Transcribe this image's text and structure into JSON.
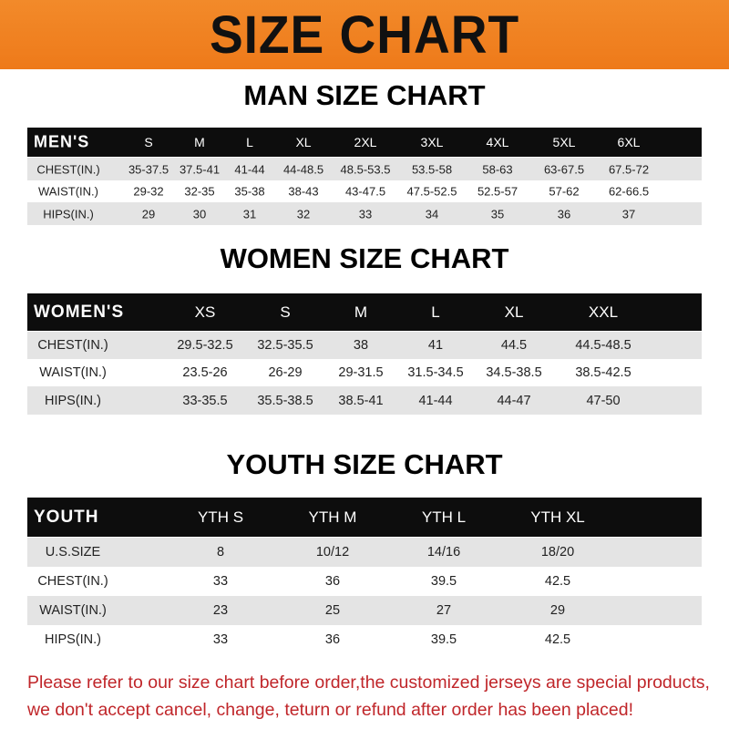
{
  "banner_title": "SIZE CHART",
  "men": {
    "title": "MAN SIZE CHART",
    "header": [
      "MEN'S",
      "S",
      "M",
      "L",
      "XL",
      "2XL",
      "3XL",
      "4XL",
      "5XL",
      "6XL"
    ],
    "rows": [
      [
        "CHEST(IN.)",
        "35-37.5",
        "37.5-41",
        "41-44",
        "44-48.5",
        "48.5-53.5",
        "53.5-58",
        "58-63",
        "63-67.5",
        "67.5-72"
      ],
      [
        "WAIST(IN.)",
        "29-32",
        "32-35",
        "35-38",
        "38-43",
        "43-47.5",
        "47.5-52.5",
        "52.5-57",
        "57-62",
        "62-66.5"
      ],
      [
        "HIPS(IN.)",
        "29",
        "30",
        "31",
        "32",
        "33",
        "34",
        "35",
        "36",
        "37"
      ]
    ]
  },
  "women": {
    "title": "WOMEN SIZE CHART",
    "header": [
      "WOMEN'S",
      "XS",
      "S",
      "M",
      "L",
      "XL",
      "XXL"
    ],
    "rows": [
      [
        "CHEST(IN.)",
        "29.5-32.5",
        "32.5-35.5",
        "38",
        "41",
        "44.5",
        "44.5-48.5"
      ],
      [
        "WAIST(IN.)",
        "23.5-26",
        "26-29",
        "29-31.5",
        "31.5-34.5",
        "34.5-38.5",
        "38.5-42.5"
      ],
      [
        "HIPS(IN.)",
        "33-35.5",
        "35.5-38.5",
        "38.5-41",
        "41-44",
        "44-47",
        "47-50"
      ]
    ]
  },
  "youth": {
    "title": "YOUTH SIZE CHART",
    "header": [
      "YOUTH",
      "YTH S",
      "YTH M",
      "YTH L",
      "YTH XL"
    ],
    "rows": [
      [
        "U.S.SIZE",
        "8",
        "10/12",
        "14/16",
        "18/20"
      ],
      [
        "CHEST(IN.)",
        "33",
        "36",
        "39.5",
        "42.5"
      ],
      [
        "WAIST(IN.)",
        "23",
        "25",
        "27",
        "29"
      ],
      [
        "HIPS(IN.)",
        "33",
        "36",
        "39.5",
        "42.5"
      ]
    ]
  },
  "notice": [
    "Please refer to our size chart before order,the customized jerseys are special products,",
    "we don't accept cancel, change, teturn or refund after order has been placed!"
  ],
  "colors": {
    "banner": "#f07f1e",
    "header_row": "#0d0d0d",
    "stripe": "#e4e4e4",
    "notice": "#c0262a"
  }
}
